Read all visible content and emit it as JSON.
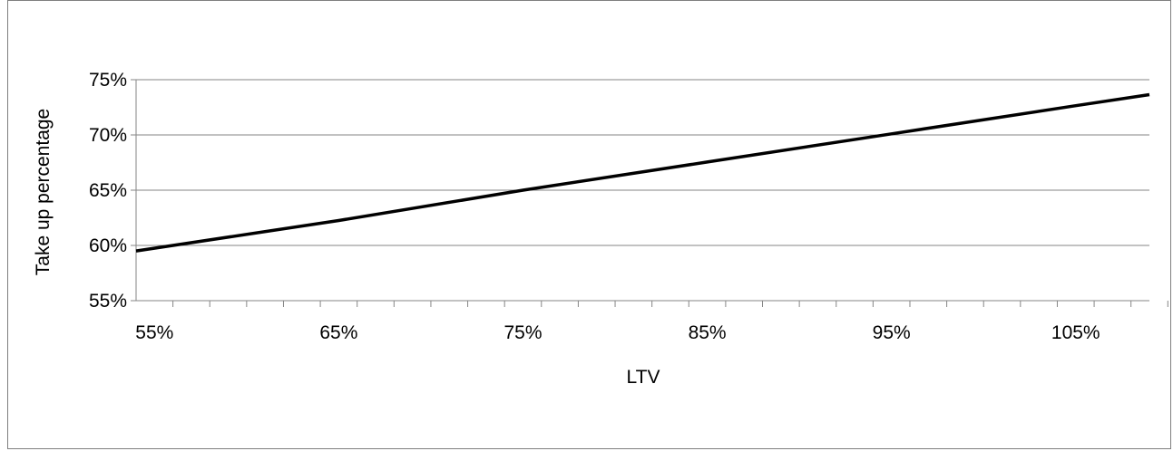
{
  "chart_data": {
    "type": "line",
    "title": "",
    "xlabel": "LTV",
    "ylabel": "Take up percentage",
    "xlim": [
      0.54,
      1.09
    ],
    "ylim": [
      0.55,
      0.75
    ],
    "x_ticks": [
      0.55,
      0.65,
      0.75,
      0.85,
      0.95,
      1.05
    ],
    "x_tick_labels": [
      "55%",
      "65%",
      "75%",
      "85%",
      "95%",
      "105%"
    ],
    "x_minor_step": 0.02,
    "y_ticks": [
      0.55,
      0.6,
      0.65,
      0.7,
      0.75
    ],
    "y_tick_labels": [
      "55%",
      "60%",
      "65%",
      "70%",
      "75%"
    ],
    "grid": true,
    "legend": "none",
    "line_color": "#000000",
    "series": [
      {
        "x": [
          0.54,
          0.65,
          0.75,
          0.85,
          0.95,
          1.05,
          1.09
        ],
        "y": [
          0.595,
          0.6225,
          0.65,
          0.6755,
          0.701,
          0.7265,
          0.7365
        ]
      }
    ]
  }
}
